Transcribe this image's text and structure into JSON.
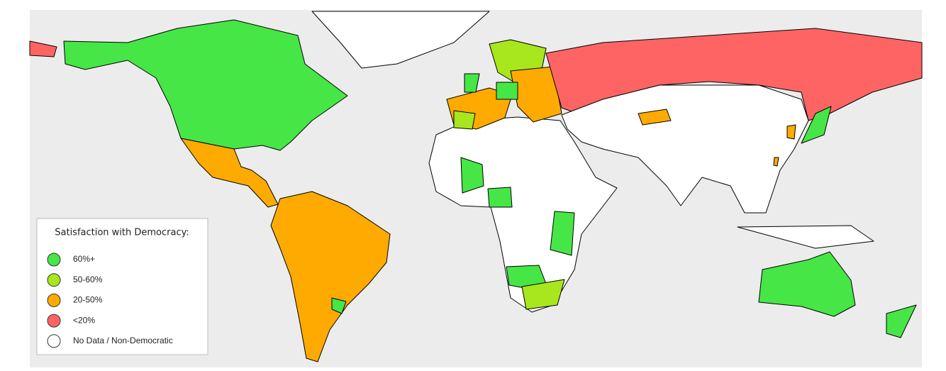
{
  "legend": {
    "title": "Satisfaction with Democracy:",
    "items": [
      {
        "label": "60%+",
        "color": "#46e646"
      },
      {
        "label": "50-60%",
        "color": "#a8e61e"
      },
      {
        "label": "20-50%",
        "color": "#ffaa00"
      },
      {
        "label": "<20%",
        "color": "#ff6464"
      },
      {
        "label": "No Data / Non-Democratic",
        "color": "#ffffff"
      }
    ]
  }
}
